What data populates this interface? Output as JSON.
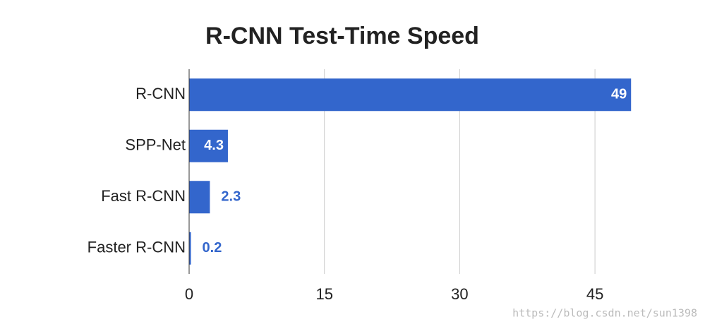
{
  "chart_data": {
    "type": "bar",
    "orientation": "horizontal",
    "title": "R-CNN Test-Time Speed",
    "categories": [
      "R-CNN",
      "SPP-Net",
      "Fast R-CNN",
      "Faster R-CNN"
    ],
    "values": [
      49,
      4.3,
      2.3,
      0.2
    ],
    "color": "#3366cc",
    "xlim": [
      0,
      50
    ],
    "xticks": [
      0,
      15,
      30,
      45
    ],
    "grid": true,
    "watermark": "https://blog.csdn.net/sun1398"
  }
}
